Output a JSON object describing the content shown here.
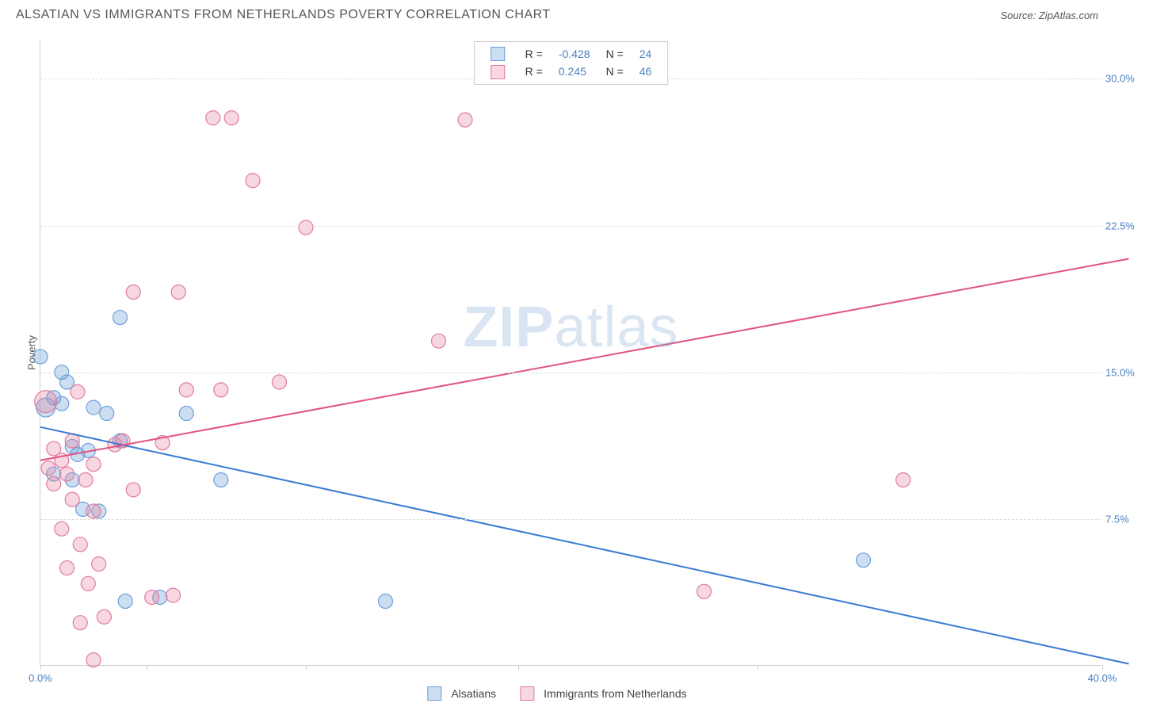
{
  "header": {
    "title": "ALSATIAN VS IMMIGRANTS FROM NETHERLANDS POVERTY CORRELATION CHART",
    "source": "Source: ZipAtlas.com"
  },
  "watermark": {
    "zip": "ZIP",
    "atlas": "atlas"
  },
  "chart": {
    "type": "scatter",
    "ylabel": "Poverty",
    "xlim": [
      0,
      40
    ],
    "ylim": [
      0,
      32
    ],
    "background_color": "#ffffff",
    "grid_color": "#dddddd",
    "axis_color": "#cccccc",
    "tick_label_color": "#4a7ec2",
    "yticks": [
      {
        "value": 7.5,
        "label": "7.5%"
      },
      {
        "value": 15.0,
        "label": "15.0%"
      },
      {
        "value": 22.5,
        "label": "22.5%"
      },
      {
        "value": 30.0,
        "label": "30.0%"
      }
    ],
    "xticks": [
      {
        "value": 0,
        "label": "0.0%",
        "show_label": true
      },
      {
        "value": 4,
        "label": "",
        "show_label": false
      },
      {
        "value": 10,
        "label": "",
        "show_label": false
      },
      {
        "value": 18,
        "label": "",
        "show_label": false
      },
      {
        "value": 27,
        "label": "",
        "show_label": false
      },
      {
        "value": 40,
        "label": "40.0%",
        "show_label": true
      }
    ],
    "series": [
      {
        "name": "Alsatians",
        "fill_color": "rgba(110, 160, 215, 0.35)",
        "stroke_color": "#6ea0d7",
        "line_color": "#3a7bd5",
        "marker_r": 9,
        "trend": {
          "x1": 0,
          "y1": 12.2,
          "x2": 41,
          "y2": 0.1
        },
        "r_value": "-0.428",
        "n_value": "24",
        "points": [
          {
            "x": 0.0,
            "y": 15.8,
            "r": 9
          },
          {
            "x": 0.2,
            "y": 13.2,
            "r": 12
          },
          {
            "x": 0.5,
            "y": 9.8,
            "r": 9
          },
          {
            "x": 0.5,
            "y": 13.7,
            "r": 9
          },
          {
            "x": 0.8,
            "y": 15.0,
            "r": 9
          },
          {
            "x": 0.8,
            "y": 13.4,
            "r": 9
          },
          {
            "x": 1.0,
            "y": 14.5,
            "r": 9
          },
          {
            "x": 1.2,
            "y": 11.2,
            "r": 9
          },
          {
            "x": 1.2,
            "y": 9.5,
            "r": 9
          },
          {
            "x": 1.4,
            "y": 10.8,
            "r": 9
          },
          {
            "x": 1.6,
            "y": 8.0,
            "r": 9
          },
          {
            "x": 1.8,
            "y": 11.0,
            "r": 9
          },
          {
            "x": 2.0,
            "y": 13.2,
            "r": 9
          },
          {
            "x": 2.2,
            "y": 7.9,
            "r": 9
          },
          {
            "x": 2.5,
            "y": 12.9,
            "r": 9
          },
          {
            "x": 3.0,
            "y": 17.8,
            "r": 9
          },
          {
            "x": 3.0,
            "y": 11.5,
            "r": 9
          },
          {
            "x": 3.2,
            "y": 3.3,
            "r": 9
          },
          {
            "x": 4.5,
            "y": 3.5,
            "r": 9
          },
          {
            "x": 5.5,
            "y": 12.9,
            "r": 9
          },
          {
            "x": 6.8,
            "y": 9.5,
            "r": 9
          },
          {
            "x": 13.0,
            "y": 3.3,
            "r": 9
          },
          {
            "x": 31.0,
            "y": 5.4,
            "r": 9
          }
        ]
      },
      {
        "name": "Immigrants from Netherlands",
        "fill_color": "rgba(230, 130, 160, 0.32)",
        "stroke_color": "#e17ba0",
        "line_color": "#e2537c",
        "marker_r": 9,
        "trend": {
          "x1": 0,
          "y1": 10.5,
          "x2": 41,
          "y2": 20.8
        },
        "r_value": "0.245",
        "n_value": "46",
        "points": [
          {
            "x": 0.2,
            "y": 13.5,
            "r": 14
          },
          {
            "x": 0.3,
            "y": 10.1,
            "r": 9
          },
          {
            "x": 0.5,
            "y": 9.3,
            "r": 9
          },
          {
            "x": 0.5,
            "y": 11.1,
            "r": 9
          },
          {
            "x": 0.8,
            "y": 10.5,
            "r": 9
          },
          {
            "x": 0.8,
            "y": 7.0,
            "r": 9
          },
          {
            "x": 1.0,
            "y": 9.8,
            "r": 9
          },
          {
            "x": 1.0,
            "y": 5.0,
            "r": 9
          },
          {
            "x": 1.2,
            "y": 8.5,
            "r": 9
          },
          {
            "x": 1.2,
            "y": 11.5,
            "r": 9
          },
          {
            "x": 1.4,
            "y": 14.0,
            "r": 9
          },
          {
            "x": 1.5,
            "y": 6.2,
            "r": 9
          },
          {
            "x": 1.5,
            "y": 2.2,
            "r": 9
          },
          {
            "x": 1.7,
            "y": 9.5,
            "r": 9
          },
          {
            "x": 1.8,
            "y": 4.2,
            "r": 9
          },
          {
            "x": 2.0,
            "y": 7.9,
            "r": 9
          },
          {
            "x": 2.0,
            "y": 10.3,
            "r": 9
          },
          {
            "x": 2.0,
            "y": 0.3,
            "r": 9
          },
          {
            "x": 2.2,
            "y": 5.2,
            "r": 9
          },
          {
            "x": 2.4,
            "y": 2.5,
            "r": 9
          },
          {
            "x": 2.8,
            "y": 11.3,
            "r": 9
          },
          {
            "x": 3.1,
            "y": 11.5,
            "r": 9
          },
          {
            "x": 3.5,
            "y": 9.0,
            "r": 9
          },
          {
            "x": 3.5,
            "y": 19.1,
            "r": 9
          },
          {
            "x": 4.2,
            "y": 3.5,
            "r": 9
          },
          {
            "x": 4.6,
            "y": 11.4,
            "r": 9
          },
          {
            "x": 5.0,
            "y": 3.6,
            "r": 9
          },
          {
            "x": 5.2,
            "y": 19.1,
            "r": 9
          },
          {
            "x": 5.5,
            "y": 14.1,
            "r": 9
          },
          {
            "x": 6.5,
            "y": 28.0,
            "r": 9
          },
          {
            "x": 6.8,
            "y": 14.1,
            "r": 9
          },
          {
            "x": 7.2,
            "y": 28.0,
            "r": 9
          },
          {
            "x": 8.0,
            "y": 24.8,
            "r": 9
          },
          {
            "x": 9.0,
            "y": 14.5,
            "r": 9
          },
          {
            "x": 10.0,
            "y": 22.4,
            "r": 9
          },
          {
            "x": 15.0,
            "y": 16.6,
            "r": 9
          },
          {
            "x": 16.0,
            "y": 27.9,
            "r": 9
          },
          {
            "x": 25.0,
            "y": 3.8,
            "r": 9
          },
          {
            "x": 32.5,
            "y": 9.5,
            "r": 9
          }
        ]
      }
    ],
    "legend_top_rows": [
      {
        "series_index": 0,
        "r_label": "R =",
        "n_label": "N ="
      },
      {
        "series_index": 1,
        "r_label": "R =",
        "n_label": "N ="
      }
    ]
  }
}
